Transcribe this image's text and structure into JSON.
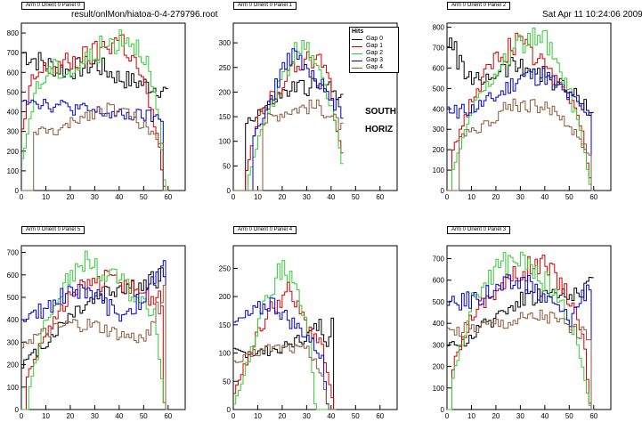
{
  "header": {
    "file": "result/onlMon/hiatoa-0-4-279796.root",
    "date": "Sat Apr 11 10:24:06 2009"
  },
  "legend": {
    "title": "Hits",
    "entries": [
      "Gap 0",
      "Gap 1",
      "Gap 2",
      "Gap 3",
      "Gap 4"
    ]
  },
  "annotations": {
    "line1": "SOUTH",
    "line2": "HORIZ"
  },
  "colors": {
    "Gap 0": "#000000",
    "Gap 1": "#d40000",
    "Gap 2": "#33cc33",
    "Gap 3": "#0000cc",
    "Gap 4": "#8b5a3c"
  },
  "chart_data": [
    {
      "type": "line",
      "title": "Arm 0 Orient 0 Panel 0",
      "xlim": [
        0,
        67
      ],
      "ylim": [
        0,
        850
      ],
      "xticks": [
        0,
        10,
        20,
        30,
        40,
        50,
        60
      ],
      "yticks": [
        0,
        100,
        200,
        300,
        400,
        500,
        600,
        700,
        800
      ],
      "range": [
        0,
        60
      ],
      "series": [
        {
          "name": "Gap 0",
          "profile": [
            [
              0,
              700
            ],
            [
              8,
              650
            ],
            [
              18,
              610
            ],
            [
              30,
              640
            ],
            [
              40,
              570
            ],
            [
              50,
              540
            ],
            [
              60,
              500
            ]
          ]
        },
        {
          "name": "Gap 1",
          "profile": [
            [
              0,
              300
            ],
            [
              4,
              560
            ],
            [
              10,
              620
            ],
            [
              20,
              650
            ],
            [
              30,
              700
            ],
            [
              40,
              780
            ],
            [
              48,
              600
            ],
            [
              55,
              300
            ],
            [
              58,
              20
            ]
          ]
        },
        {
          "name": "Gap 2",
          "profile": [
            [
              0,
              150
            ],
            [
              5,
              500
            ],
            [
              12,
              620
            ],
            [
              20,
              600
            ],
            [
              32,
              720
            ],
            [
              42,
              790
            ],
            [
              50,
              700
            ],
            [
              56,
              350
            ],
            [
              58,
              50
            ]
          ]
        },
        {
          "name": "Gap 3",
          "profile": [
            [
              0,
              480
            ],
            [
              10,
              440
            ],
            [
              20,
              420
            ],
            [
              30,
              400
            ],
            [
              40,
              380
            ],
            [
              50,
              380
            ],
            [
              57,
              360
            ]
          ]
        },
        {
          "name": "Gap 4",
          "profile": [
            [
              5,
              300
            ],
            [
              15,
              300
            ],
            [
              25,
              380
            ],
            [
              35,
              420
            ],
            [
              45,
              380
            ],
            [
              52,
              300
            ],
            [
              57,
              250
            ]
          ]
        }
      ]
    },
    {
      "type": "line",
      "title": "Arm 0 Orient 0 Panel 1",
      "xlim": [
        0,
        67
      ],
      "ylim": [
        0,
        340
      ],
      "xticks": [
        0,
        10,
        20,
        30,
        40,
        50,
        60
      ],
      "yticks": [
        0,
        50,
        100,
        150,
        200,
        250,
        300
      ],
      "range": [
        0,
        45
      ],
      "series": [
        {
          "name": "Gap 0",
          "profile": [
            [
              5,
              140
            ],
            [
              15,
              180
            ],
            [
              25,
              210
            ],
            [
              35,
              210
            ],
            [
              45,
              200
            ]
          ]
        },
        {
          "name": "Gap 1",
          "profile": [
            [
              5,
              40
            ],
            [
              10,
              150
            ],
            [
              20,
              220
            ],
            [
              30,
              280
            ],
            [
              38,
              240
            ],
            [
              43,
              100
            ],
            [
              45,
              40
            ]
          ]
        },
        {
          "name": "Gap 2",
          "profile": [
            [
              6,
              30
            ],
            [
              12,
              140
            ],
            [
              20,
              230
            ],
            [
              28,
              310
            ],
            [
              35,
              260
            ],
            [
              42,
              120
            ],
            [
              45,
              30
            ]
          ]
        },
        {
          "name": "Gap 3",
          "profile": [
            [
              8,
              120
            ],
            [
              15,
              180
            ],
            [
              22,
              280
            ],
            [
              30,
              240
            ],
            [
              38,
              200
            ],
            [
              45,
              150
            ]
          ]
        },
        {
          "name": "Gap 4",
          "profile": [
            [
              12,
              140
            ],
            [
              20,
              160
            ],
            [
              28,
              170
            ],
            [
              35,
              170
            ],
            [
              42,
              140
            ],
            [
              45,
              120
            ]
          ]
        }
      ]
    },
    {
      "type": "line",
      "title": "Arm 0 Orient 0 Panel 2",
      "xlim": [
        0,
        67
      ],
      "ylim": [
        0,
        820
      ],
      "xticks": [
        0,
        10,
        20,
        30,
        40,
        50,
        60
      ],
      "yticks": [
        0,
        100,
        200,
        300,
        400,
        500,
        600,
        700,
        800
      ],
      "range": [
        0,
        60
      ],
      "series": [
        {
          "name": "Gap 0",
          "profile": [
            [
              0,
              740
            ],
            [
              10,
              520
            ],
            [
              20,
              580
            ],
            [
              30,
              620
            ],
            [
              40,
              560
            ],
            [
              50,
              480
            ],
            [
              60,
              380
            ]
          ]
        },
        {
          "name": "Gap 1",
          "profile": [
            [
              2,
              200
            ],
            [
              10,
              450
            ],
            [
              20,
              650
            ],
            [
              28,
              720
            ],
            [
              38,
              620
            ],
            [
              48,
              520
            ],
            [
              55,
              300
            ],
            [
              58,
              60
            ]
          ]
        },
        {
          "name": "Gap 2",
          "profile": [
            [
              2,
              100
            ],
            [
              10,
              400
            ],
            [
              20,
              600
            ],
            [
              32,
              740
            ],
            [
              40,
              720
            ],
            [
              48,
              550
            ],
            [
              55,
              250
            ],
            [
              58,
              30
            ]
          ]
        },
        {
          "name": "Gap 3",
          "profile": [
            [
              0,
              380
            ],
            [
              10,
              400
            ],
            [
              20,
              460
            ],
            [
              30,
              560
            ],
            [
              40,
              560
            ],
            [
              50,
              450
            ],
            [
              58,
              380
            ]
          ]
        },
        {
          "name": "Gap 4",
          "profile": [
            [
              5,
              280
            ],
            [
              15,
              320
            ],
            [
              25,
              420
            ],
            [
              35,
              420
            ],
            [
              45,
              380
            ],
            [
              52,
              280
            ],
            [
              58,
              180
            ]
          ]
        }
      ]
    },
    {
      "type": "line",
      "title": "Arm 0 Orient 0 Panel 5",
      "xlim": [
        0,
        67
      ],
      "ylim": [
        0,
        730
      ],
      "xticks": [
        0,
        10,
        20,
        30,
        40,
        50,
        60
      ],
      "yticks": [
        0,
        100,
        200,
        300,
        400,
        500,
        600,
        700
      ],
      "range": [
        0,
        60
      ],
      "series": [
        {
          "name": "Gap 0",
          "profile": [
            [
              0,
              200
            ],
            [
              10,
              300
            ],
            [
              20,
              430
            ],
            [
              30,
              500
            ],
            [
              40,
              550
            ],
            [
              50,
              540
            ],
            [
              58,
              620
            ]
          ]
        },
        {
          "name": "Gap 1",
          "profile": [
            [
              2,
              150
            ],
            [
              10,
              350
            ],
            [
              20,
              500
            ],
            [
              30,
              580
            ],
            [
              40,
              560
            ],
            [
              50,
              520
            ],
            [
              57,
              480
            ],
            [
              58,
              30
            ]
          ]
        },
        {
          "name": "Gap 2",
          "profile": [
            [
              3,
              100
            ],
            [
              10,
              420
            ],
            [
              20,
              620
            ],
            [
              28,
              660
            ],
            [
              36,
              600
            ],
            [
              45,
              520
            ],
            [
              54,
              440
            ],
            [
              58,
              30
            ]
          ]
        },
        {
          "name": "Gap 3",
          "profile": [
            [
              0,
              380
            ],
            [
              10,
              460
            ],
            [
              20,
              540
            ],
            [
              30,
              500
            ],
            [
              40,
              420
            ],
            [
              50,
              500
            ],
            [
              58,
              640
            ]
          ]
        },
        {
          "name": "Gap 4",
          "profile": [
            [
              0,
              300
            ],
            [
              10,
              340
            ],
            [
              20,
              380
            ],
            [
              30,
              370
            ],
            [
              40,
              330
            ],
            [
              50,
              310
            ],
            [
              58,
              520
            ]
          ]
        }
      ]
    },
    {
      "type": "line",
      "title": "Arm 0 Orient 0 Panel 4",
      "xlim": [
        0,
        67
      ],
      "ylim": [
        0,
        290
      ],
      "xticks": [
        0,
        10,
        20,
        30,
        40,
        50,
        60
      ],
      "yticks": [
        0,
        50,
        100,
        150,
        200,
        250
      ],
      "range": [
        0,
        42
      ],
      "series": [
        {
          "name": "Gap 0",
          "profile": [
            [
              0,
              100
            ],
            [
              10,
              100
            ],
            [
              20,
              110
            ],
            [
              30,
              130
            ],
            [
              35,
              150
            ],
            [
              38,
              120
            ],
            [
              40,
              160
            ]
          ]
        },
        {
          "name": "Gap 1",
          "profile": [
            [
              0,
              30
            ],
            [
              8,
              120
            ],
            [
              15,
              180
            ],
            [
              22,
              210
            ],
            [
              30,
              150
            ],
            [
              36,
              110
            ],
            [
              40,
              20
            ]
          ]
        },
        {
          "name": "Gap 2",
          "profile": [
            [
              0,
              10
            ],
            [
              6,
              90
            ],
            [
              12,
              180
            ],
            [
              20,
              260
            ],
            [
              26,
              200
            ],
            [
              31,
              120
            ],
            [
              33,
              10
            ]
          ]
        },
        {
          "name": "Gap 3",
          "profile": [
            [
              0,
              150
            ],
            [
              8,
              170
            ],
            [
              15,
              190
            ],
            [
              22,
              160
            ],
            [
              30,
              130
            ],
            [
              36,
              90
            ],
            [
              38,
              10
            ]
          ]
        },
        {
          "name": "Gap 4",
          "profile": [
            [
              0,
              80
            ],
            [
              8,
              100
            ],
            [
              15,
              110
            ],
            [
              22,
              110
            ],
            [
              30,
              105
            ],
            [
              36,
              60
            ],
            [
              38,
              10
            ]
          ]
        }
      ]
    },
    {
      "type": "line",
      "title": "Arm 0 Orient 0 Panel 3",
      "xlim": [
        0,
        67
      ],
      "ylim": [
        0,
        760
      ],
      "xticks": [
        0,
        10,
        20,
        30,
        40,
        50,
        60
      ],
      "yticks": [
        0,
        100,
        200,
        300,
        400,
        500,
        600,
        700
      ],
      "range": [
        0,
        60
      ],
      "series": [
        {
          "name": "Gap 0",
          "profile": [
            [
              0,
              280
            ],
            [
              10,
              340
            ],
            [
              20,
              440
            ],
            [
              30,
              520
            ],
            [
              40,
              540
            ],
            [
              50,
              520
            ],
            [
              60,
              620
            ]
          ]
        },
        {
          "name": "Gap 1",
          "profile": [
            [
              2,
              200
            ],
            [
              10,
              450
            ],
            [
              20,
              560
            ],
            [
              30,
              640
            ],
            [
              38,
              680
            ],
            [
              46,
              600
            ],
            [
              55,
              380
            ],
            [
              58,
              30
            ]
          ]
        },
        {
          "name": "Gap 2",
          "profile": [
            [
              2,
              150
            ],
            [
              10,
              500
            ],
            [
              20,
              660
            ],
            [
              28,
              700
            ],
            [
              36,
              640
            ],
            [
              44,
              540
            ],
            [
              52,
              360
            ],
            [
              58,
              20
            ]
          ]
        },
        {
          "name": "Gap 3",
          "profile": [
            [
              0,
              480
            ],
            [
              10,
              520
            ],
            [
              20,
              560
            ],
            [
              30,
              600
            ],
            [
              40,
              520
            ],
            [
              50,
              420
            ],
            [
              58,
              600
            ]
          ]
        },
        {
          "name": "Gap 4",
          "profile": [
            [
              0,
              360
            ],
            [
              10,
              380
            ],
            [
              20,
              400
            ],
            [
              30,
              420
            ],
            [
              40,
              440
            ],
            [
              50,
              380
            ],
            [
              58,
              340
            ]
          ]
        }
      ]
    }
  ]
}
